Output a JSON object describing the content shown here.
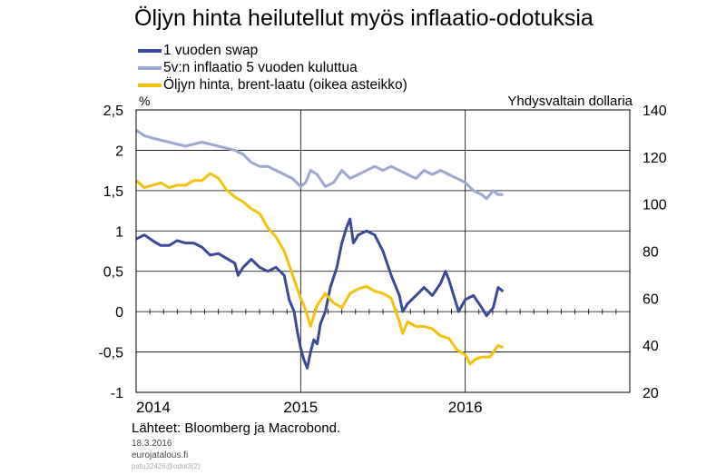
{
  "title": "Öljyn hinta heilutellut myös inflaatio-odotuksia",
  "colors": {
    "swap": "#3a4a99",
    "infl": "#9ea6d4",
    "oil": "#f4c20d"
  },
  "legend": [
    {
      "label": "1 vuoden swap",
      "color": "#3a4a99"
    },
    {
      "label": "5v:n inflaatio 5 vuoden kuluttua",
      "color": "#9ea6d4"
    },
    {
      "label": "Öljyn hinta, brent-laatu (oikea asteikko)",
      "color": "#f4c20d"
    }
  ],
  "axis": {
    "left_unit": "%",
    "right_unit": "Yhdysvaltain dollaria"
  },
  "footer": {
    "source": "Lähteet: Bloomberg ja Macrobond.",
    "date": "18.3.2016",
    "site": "eurojatalous.fi",
    "code": "patu32426@odot3(2)"
  },
  "chart_data": {
    "type": "line",
    "x_ticks": [
      "2014",
      "2015",
      "2016"
    ],
    "x_range": [
      2014.0,
      2017.0
    ],
    "y_left": {
      "ticks": [
        "2,5",
        "2",
        "1,5",
        "1",
        "0,5",
        "0",
        "-0,5",
        "-1"
      ],
      "range": [
        -1,
        2.5
      ]
    },
    "y_right": {
      "ticks": [
        "140",
        "120",
        "100",
        "80",
        "60",
        "40",
        "20"
      ],
      "range": [
        20,
        140
      ]
    },
    "series": [
      {
        "name": "1 vuoden swap",
        "axis": "left",
        "points": [
          [
            2014.0,
            0.9
          ],
          [
            2014.05,
            0.95
          ],
          [
            2014.1,
            0.88
          ],
          [
            2014.15,
            0.82
          ],
          [
            2014.2,
            0.82
          ],
          [
            2014.25,
            0.88
          ],
          [
            2014.3,
            0.85
          ],
          [
            2014.35,
            0.85
          ],
          [
            2014.4,
            0.8
          ],
          [
            2014.45,
            0.7
          ],
          [
            2014.5,
            0.72
          ],
          [
            2014.6,
            0.6
          ],
          [
            2014.62,
            0.45
          ],
          [
            2014.65,
            0.55
          ],
          [
            2014.7,
            0.65
          ],
          [
            2014.75,
            0.55
          ],
          [
            2014.8,
            0.5
          ],
          [
            2014.85,
            0.55
          ],
          [
            2014.9,
            0.45
          ],
          [
            2014.93,
            0.15
          ],
          [
            2014.96,
            0.0
          ],
          [
            2014.98,
            -0.25
          ],
          [
            2015.0,
            -0.45
          ],
          [
            2015.02,
            -0.6
          ],
          [
            2015.04,
            -0.7
          ],
          [
            2015.06,
            -0.5
          ],
          [
            2015.08,
            -0.35
          ],
          [
            2015.1,
            -0.4
          ],
          [
            2015.12,
            -0.15
          ],
          [
            2015.15,
            0.0
          ],
          [
            2015.18,
            0.3
          ],
          [
            2015.22,
            0.55
          ],
          [
            2015.25,
            0.85
          ],
          [
            2015.28,
            1.05
          ],
          [
            2015.3,
            1.15
          ],
          [
            2015.32,
            0.85
          ],
          [
            2015.35,
            0.95
          ],
          [
            2015.4,
            1.0
          ],
          [
            2015.45,
            0.95
          ],
          [
            2015.5,
            0.75
          ],
          [
            2015.55,
            0.45
          ],
          [
            2015.6,
            0.2
          ],
          [
            2015.62,
            0.0
          ],
          [
            2015.65,
            0.1
          ],
          [
            2015.7,
            0.2
          ],
          [
            2015.75,
            0.3
          ],
          [
            2015.8,
            0.2
          ],
          [
            2015.85,
            0.35
          ],
          [
            2015.88,
            0.5
          ],
          [
            2015.9,
            0.4
          ],
          [
            2015.93,
            0.2
          ],
          [
            2015.96,
            0.0
          ],
          [
            2016.0,
            0.15
          ],
          [
            2016.05,
            0.2
          ],
          [
            2016.1,
            0.05
          ],
          [
            2016.13,
            -0.05
          ],
          [
            2016.17,
            0.05
          ],
          [
            2016.2,
            0.3
          ],
          [
            2016.23,
            0.25
          ]
        ]
      },
      {
        "name": "5v:n inflaatio 5 vuoden kuluttua",
        "axis": "left",
        "points": [
          [
            2014.0,
            2.25
          ],
          [
            2014.05,
            2.18
          ],
          [
            2014.1,
            2.15
          ],
          [
            2014.2,
            2.1
          ],
          [
            2014.3,
            2.05
          ],
          [
            2014.4,
            2.1
          ],
          [
            2014.5,
            2.05
          ],
          [
            2014.6,
            2.0
          ],
          [
            2014.65,
            1.95
          ],
          [
            2014.7,
            1.85
          ],
          [
            2014.75,
            1.8
          ],
          [
            2014.8,
            1.8
          ],
          [
            2014.85,
            1.75
          ],
          [
            2014.9,
            1.7
          ],
          [
            2014.95,
            1.65
          ],
          [
            2015.0,
            1.55
          ],
          [
            2015.03,
            1.6
          ],
          [
            2015.06,
            1.75
          ],
          [
            2015.1,
            1.7
          ],
          [
            2015.15,
            1.55
          ],
          [
            2015.2,
            1.6
          ],
          [
            2015.25,
            1.75
          ],
          [
            2015.3,
            1.65
          ],
          [
            2015.35,
            1.7
          ],
          [
            2015.4,
            1.75
          ],
          [
            2015.45,
            1.8
          ],
          [
            2015.5,
            1.75
          ],
          [
            2015.55,
            1.8
          ],
          [
            2015.6,
            1.75
          ],
          [
            2015.65,
            1.7
          ],
          [
            2015.7,
            1.65
          ],
          [
            2015.75,
            1.75
          ],
          [
            2015.8,
            1.7
          ],
          [
            2015.85,
            1.75
          ],
          [
            2015.9,
            1.7
          ],
          [
            2015.95,
            1.65
          ],
          [
            2016.0,
            1.6
          ],
          [
            2016.05,
            1.5
          ],
          [
            2016.1,
            1.45
          ],
          [
            2016.13,
            1.4
          ],
          [
            2016.17,
            1.5
          ],
          [
            2016.2,
            1.45
          ],
          [
            2016.23,
            1.45
          ]
        ]
      },
      {
        "name": "Öljyn hinta, brent-laatu (oikea asteikko)",
        "axis": "right",
        "points": [
          [
            2014.0,
            110
          ],
          [
            2014.05,
            107
          ],
          [
            2014.1,
            108
          ],
          [
            2014.15,
            109
          ],
          [
            2014.2,
            107
          ],
          [
            2014.25,
            108
          ],
          [
            2014.3,
            108
          ],
          [
            2014.35,
            110
          ],
          [
            2014.4,
            110
          ],
          [
            2014.45,
            113
          ],
          [
            2014.5,
            111
          ],
          [
            2014.55,
            106
          ],
          [
            2014.6,
            103
          ],
          [
            2014.65,
            101
          ],
          [
            2014.7,
            98
          ],
          [
            2014.75,
            96
          ],
          [
            2014.8,
            90
          ],
          [
            2014.85,
            86
          ],
          [
            2014.9,
            80
          ],
          [
            2014.95,
            70
          ],
          [
            2015.0,
            60
          ],
          [
            2015.03,
            55
          ],
          [
            2015.06,
            48
          ],
          [
            2015.1,
            57
          ],
          [
            2015.15,
            62
          ],
          [
            2015.2,
            58
          ],
          [
            2015.25,
            56
          ],
          [
            2015.3,
            62
          ],
          [
            2015.35,
            64
          ],
          [
            2015.4,
            65
          ],
          [
            2015.45,
            63
          ],
          [
            2015.5,
            62
          ],
          [
            2015.55,
            60
          ],
          [
            2015.6,
            50
          ],
          [
            2015.62,
            45
          ],
          [
            2015.65,
            50
          ],
          [
            2015.7,
            48
          ],
          [
            2015.75,
            48
          ],
          [
            2015.8,
            47
          ],
          [
            2015.85,
            44
          ],
          [
            2015.9,
            43
          ],
          [
            2015.95,
            38
          ],
          [
            2016.0,
            36
          ],
          [
            2016.03,
            32
          ],
          [
            2016.06,
            34
          ],
          [
            2016.1,
            35
          ],
          [
            2016.15,
            35
          ],
          [
            2016.18,
            38
          ],
          [
            2016.2,
            40
          ],
          [
            2016.23,
            39
          ]
        ]
      }
    ]
  }
}
